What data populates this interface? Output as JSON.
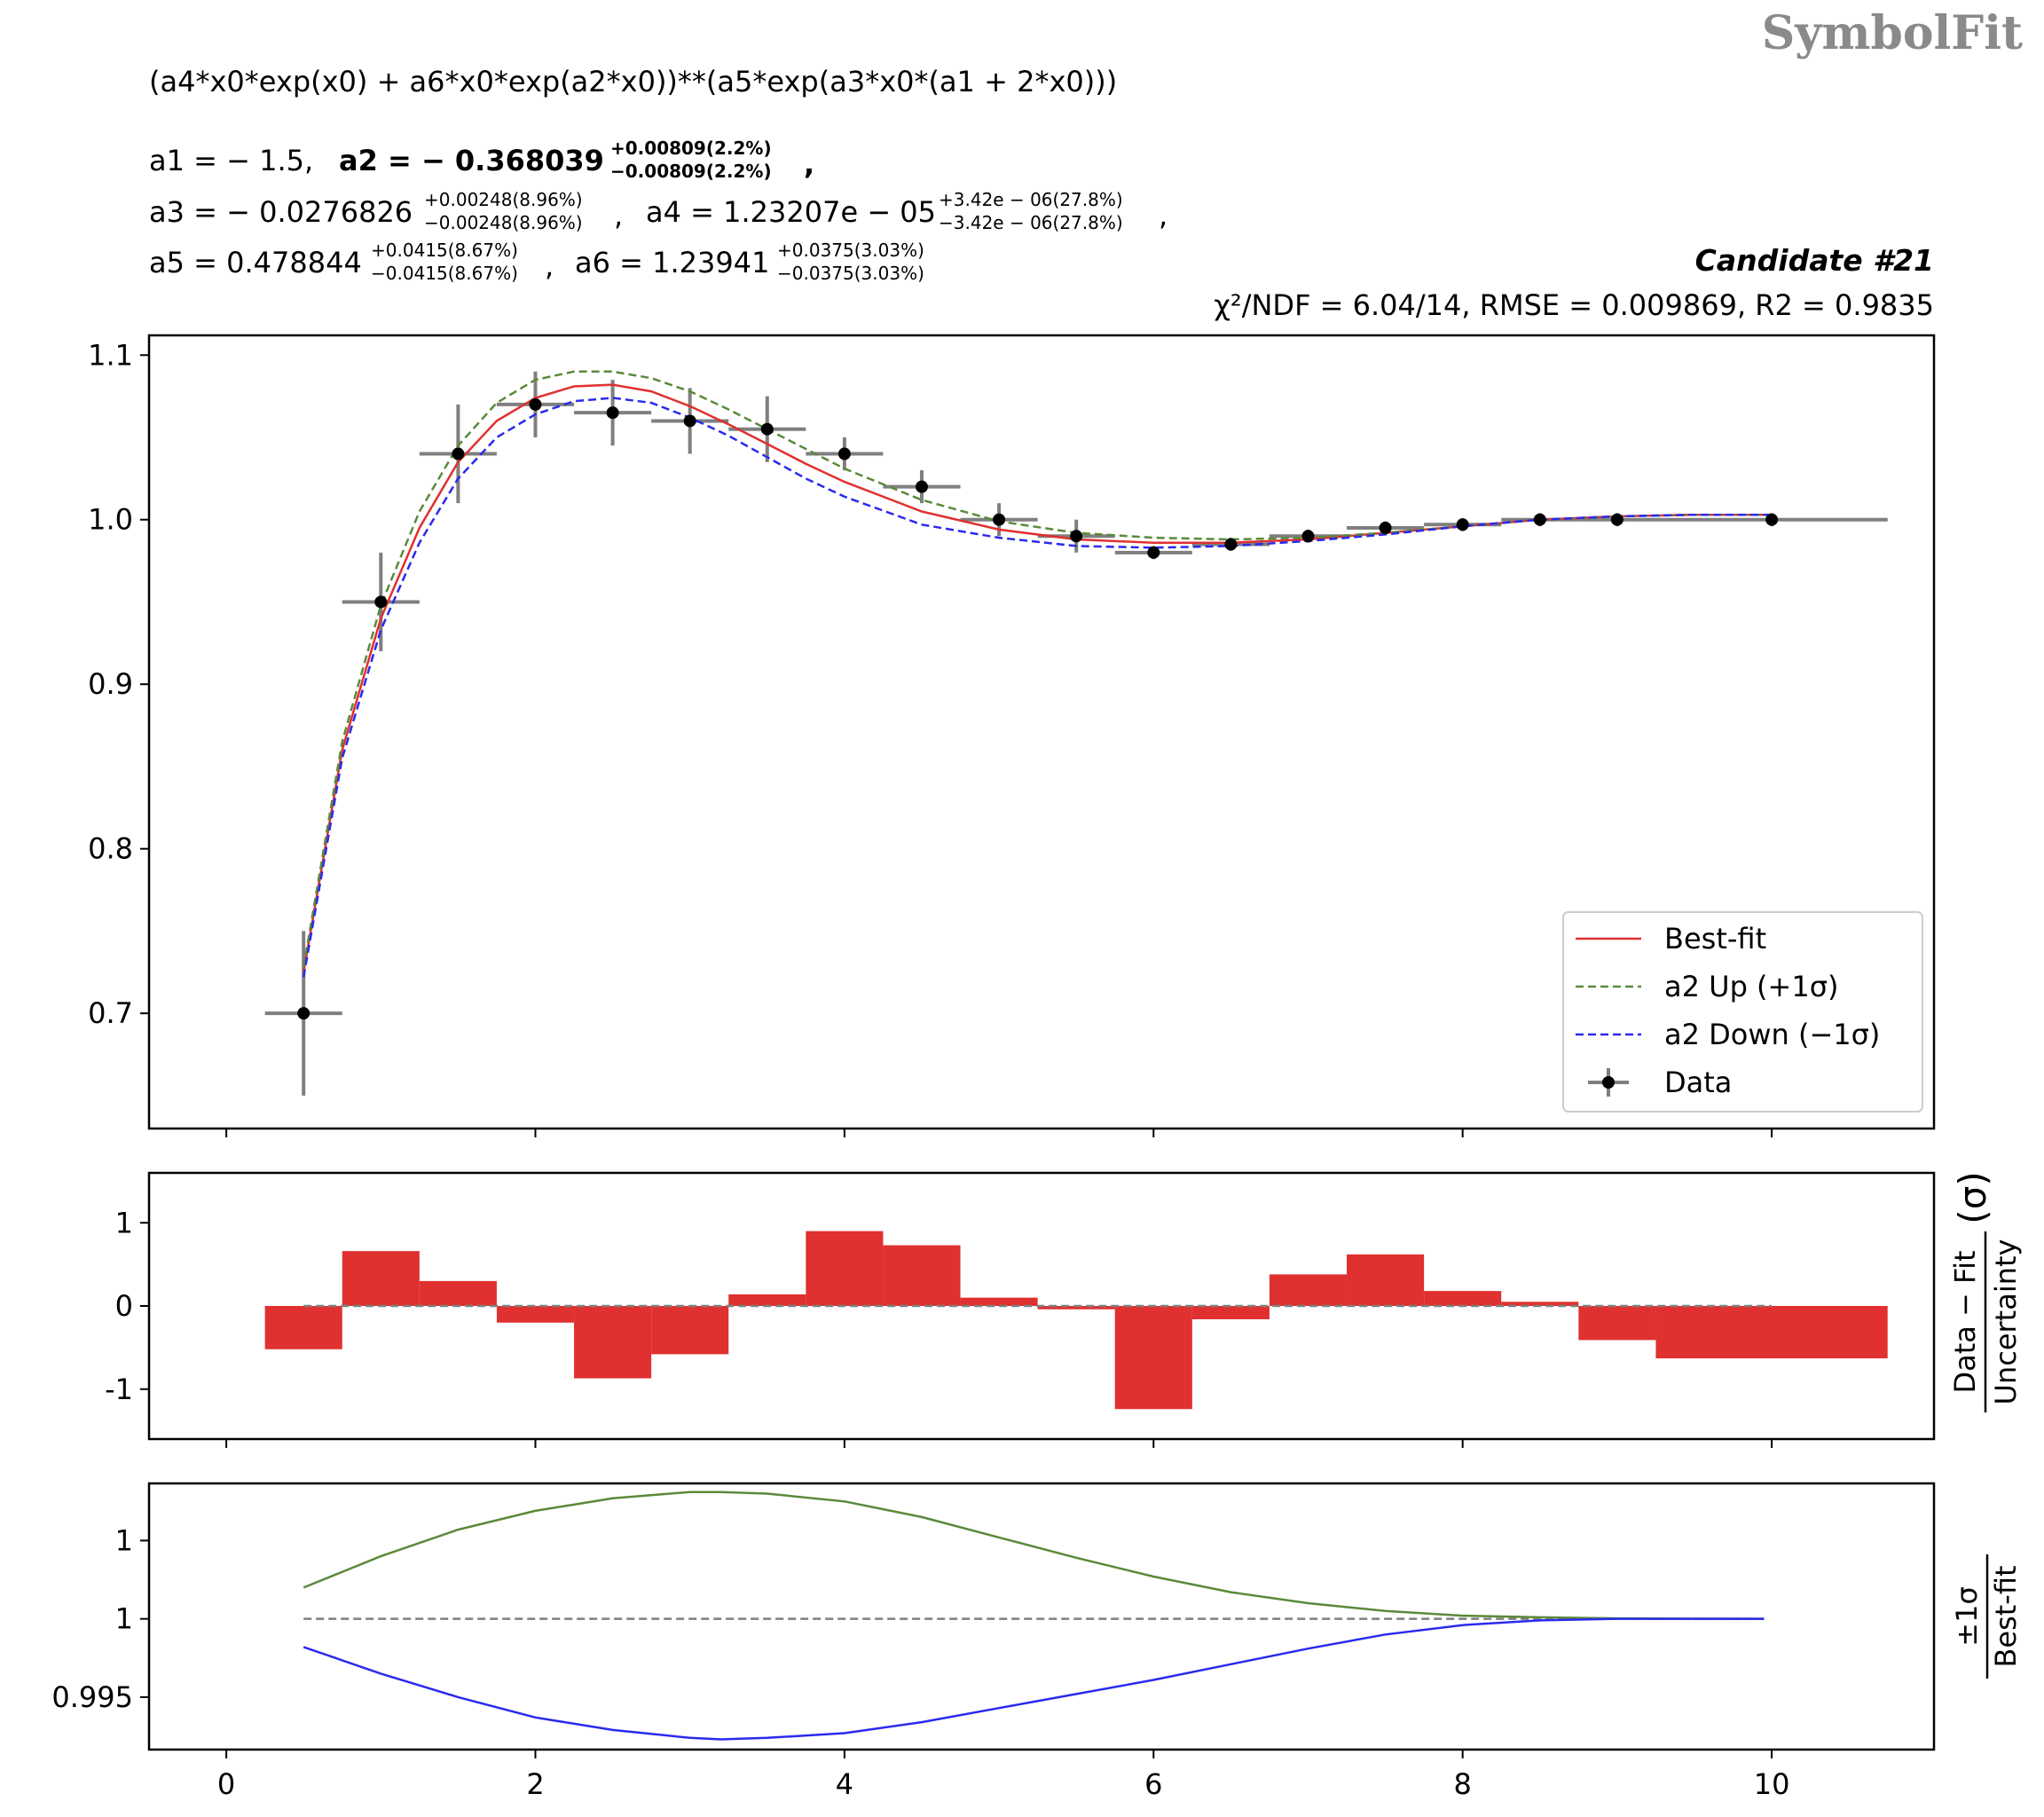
{
  "watermark": "SymbolFit",
  "formula": "(a4*x0*exp(x0) + a6*x0*exp(a2*x0))**(a5*exp(a3*x0*(a1 + 2*x0)))",
  "params": {
    "a1": "a1 = − 1.5,",
    "a2_main": "a2 = − 0.368039",
    "a2_up": "+0.00809(2.2%)",
    "a2_down": "−0.00809(2.2%)",
    "a3_main": "a3 = − 0.0276826",
    "a3_up": "+0.00248(8.96%)",
    "a3_down": "−0.00248(8.96%)",
    "a4_main": "a4 = 1.23207e − 05",
    "a4_up": "+3.42e − 06(27.8%)",
    "a4_down": "−3.42e − 06(27.8%)",
    "a5_main": "a5 = 0.478844",
    "a5_up": "+0.0415(8.67%)",
    "a5_down": "−0.0415(8.67%)",
    "a6_main": "a6 = 1.23941",
    "a6_up": "+0.0375(3.03%)",
    "a6_down": "−0.0375(3.03%)"
  },
  "candidate": "Candidate #21",
  "stats": "χ²/NDF = 6.04/14, RMSE = 0.009869, R2 = 0.9835",
  "colors": {
    "best_fit": "#e03030",
    "up": "#5a8a3a",
    "down": "#2a2aee",
    "data": "#000000",
    "error_bar": "#7f7f7f",
    "residual_bar": "#e03030"
  },
  "chart_data": [
    {
      "type": "scatter",
      "panel": "main",
      "xlim": [
        -0.5,
        11.05
      ],
      "ylim": [
        0.63,
        1.112
      ],
      "yticks": [
        0.7,
        0.8,
        0.9,
        1.0,
        1.1
      ],
      "ytick_labels": [
        "0.7",
        "0.8",
        "0.9",
        "1.0",
        "1.1"
      ],
      "data": {
        "name": "Data",
        "x": [
          0.5,
          1.0,
          1.5,
          2.0,
          2.5,
          3.0,
          3.5,
          4.0,
          4.5,
          5.0,
          5.5,
          6.0,
          6.5,
          7.0,
          7.5,
          8.0,
          8.5,
          9.0,
          10.0
        ],
        "xerr": [
          0.25,
          0.25,
          0.25,
          0.25,
          0.25,
          0.25,
          0.25,
          0.25,
          0.25,
          0.25,
          0.25,
          0.25,
          0.25,
          0.25,
          0.25,
          0.25,
          0.25,
          0.25,
          0.75
        ],
        "y": [
          0.7,
          0.95,
          1.04,
          1.07,
          1.065,
          1.06,
          1.055,
          1.04,
          1.02,
          1.0,
          0.99,
          0.98,
          0.985,
          0.99,
          0.995,
          0.997,
          1.0,
          1.0,
          1.0
        ],
        "yerr": [
          0.05,
          0.03,
          0.03,
          0.02,
          0.02,
          0.02,
          0.02,
          0.01,
          0.01,
          0.01,
          0.01,
          0.004,
          0.004,
          0.004,
          0.004,
          0.004,
          0.004,
          0.004,
          0.004
        ]
      },
      "series": [
        {
          "name": "Best-fit",
          "style": "solid",
          "x": [
            0.5,
            0.75,
            1.0,
            1.25,
            1.5,
            1.75,
            2.0,
            2.25,
            2.5,
            2.75,
            3.0,
            3.25,
            3.5,
            3.75,
            4.0,
            4.5,
            5.0,
            5.5,
            6.0,
            6.5,
            7.0,
            7.5,
            8.0,
            8.5,
            9.0,
            9.5,
            10.0
          ],
          "y": [
            0.725,
            0.86,
            0.94,
            0.995,
            1.035,
            1.06,
            1.074,
            1.081,
            1.082,
            1.078,
            1.069,
            1.058,
            1.046,
            1.034,
            1.023,
            1.005,
            0.994,
            0.988,
            0.986,
            0.986,
            0.988,
            0.992,
            0.996,
            1.0,
            1.002,
            1.003,
            1.003
          ]
        },
        {
          "name": "a2 Up (+1σ)",
          "style": "dashed",
          "x": [
            0.5,
            0.75,
            1.0,
            1.25,
            1.5,
            1.75,
            2.0,
            2.25,
            2.5,
            2.75,
            3.0,
            3.25,
            3.5,
            3.75,
            4.0,
            4.5,
            5.0,
            5.5,
            6.0,
            6.5,
            7.0,
            7.5,
            8.0,
            8.5,
            9.0,
            9.5,
            10.0
          ],
          "y": [
            0.728,
            0.865,
            0.948,
            1.005,
            1.045,
            1.071,
            1.085,
            1.09,
            1.09,
            1.086,
            1.078,
            1.067,
            1.055,
            1.043,
            1.031,
            1.012,
            0.999,
            0.992,
            0.989,
            0.988,
            0.989,
            0.992,
            0.996,
            1.0,
            1.002,
            1.003,
            1.003
          ]
        },
        {
          "name": "a2 Down (−1σ)",
          "style": "dashed",
          "x": [
            0.5,
            0.75,
            1.0,
            1.25,
            1.5,
            1.75,
            2.0,
            2.25,
            2.5,
            2.75,
            3.0,
            3.25,
            3.5,
            3.75,
            4.0,
            4.5,
            5.0,
            5.5,
            6.0,
            6.5,
            7.0,
            7.5,
            8.0,
            8.5,
            9.0,
            9.5,
            10.0
          ],
          "y": [
            0.722,
            0.855,
            0.933,
            0.986,
            1.025,
            1.05,
            1.064,
            1.072,
            1.074,
            1.071,
            1.062,
            1.051,
            1.038,
            1.025,
            1.014,
            0.997,
            0.989,
            0.984,
            0.983,
            0.984,
            0.987,
            0.991,
            0.996,
            1.0,
            1.002,
            1.003,
            1.003
          ]
        }
      ],
      "legend": {
        "position": "lower right",
        "entries": [
          "Best-fit",
          "a2 Up (+1σ)",
          "a2 Down (−1σ)",
          "Data"
        ]
      }
    },
    {
      "type": "bar",
      "panel": "residual",
      "ylabel_top": "Data − Fit",
      "ylabel_bottom": "Uncertainty",
      "ylabel_unit": "(σ)",
      "ylim": [
        -1.6,
        1.6
      ],
      "yticks": [
        1,
        0,
        -1
      ],
      "ytick_labels": [
        "1",
        "0",
        "-1"
      ],
      "edges": [
        0.25,
        0.75,
        1.25,
        1.75,
        2.25,
        2.75,
        3.25,
        3.75,
        4.25,
        4.75,
        5.25,
        5.75,
        6.25,
        6.75,
        7.25,
        7.75,
        8.25,
        8.75,
        9.25,
        10.75
      ],
      "values": [
        -0.52,
        0.66,
        0.3,
        -0.2,
        -0.87,
        -0.58,
        0.14,
        0.9,
        0.73,
        0.1,
        -0.04,
        -1.24,
        -0.16,
        0.38,
        0.62,
        0.18,
        0.05,
        -0.41,
        -0.63
      ],
      "reference_line": 0
    },
    {
      "type": "line",
      "panel": "ratio",
      "ylabel_top": "±1σ",
      "ylabel_bottom": "Best-fit",
      "ylim": [
        0.99165,
        1.00865
      ],
      "yticks": [
        1.005,
        1.0,
        0.995
      ],
      "ytick_labels": [
        "1",
        "1",
        "0.995"
      ],
      "xticks": [
        0,
        2,
        4,
        6,
        8,
        10
      ],
      "xtick_labels": [
        "0",
        "2",
        "4",
        "6",
        "8",
        "10"
      ],
      "reference_line": 1.0,
      "series": [
        {
          "name": "a2 Up (+1σ)",
          "x": [
            0.5,
            1.0,
            1.5,
            2.0,
            2.5,
            3.0,
            3.2,
            3.5,
            4.0,
            4.5,
            5.0,
            5.5,
            6.0,
            6.5,
            7.0,
            7.5,
            8.0,
            8.5,
            9.0,
            9.5,
            9.95
          ],
          "y": [
            1.002,
            1.004,
            1.0057,
            1.0069,
            1.0077,
            1.0081,
            1.0081,
            1.008,
            1.0075,
            1.0065,
            1.0052,
            1.0039,
            1.0027,
            1.0017,
            1.001,
            1.0005,
            1.0002,
            1.0001,
            1.00003,
            1.00001,
            1.0
          ]
        },
        {
          "name": "a2 Down (−1σ)",
          "x": [
            0.5,
            1.0,
            1.5,
            2.0,
            2.5,
            3.0,
            3.2,
            3.5,
            4.0,
            4.5,
            5.0,
            5.5,
            6.0,
            6.5,
            7.0,
            7.5,
            8.0,
            8.5,
            9.0,
            9.5,
            9.95
          ],
          "y": [
            0.9982,
            0.9965,
            0.995,
            0.9937,
            0.9929,
            0.9924,
            0.9923,
            0.9924,
            0.9927,
            0.9934,
            0.9943,
            0.9952,
            0.9961,
            0.9971,
            0.9981,
            0.999,
            0.9996,
            0.9999,
            1.0,
            1.0,
            1.0
          ]
        }
      ]
    }
  ]
}
